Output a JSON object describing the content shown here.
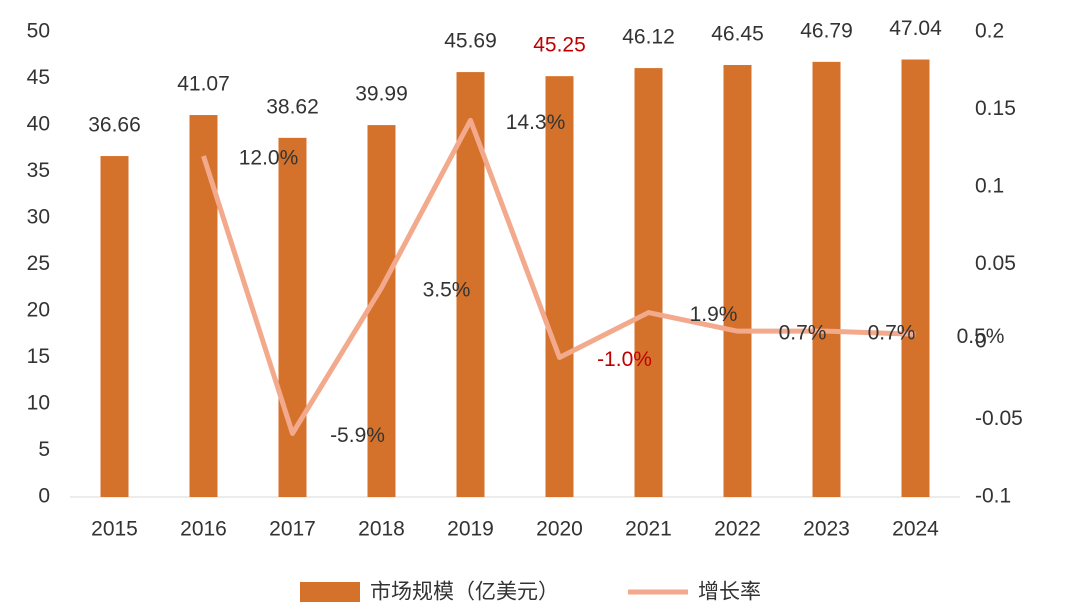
{
  "chart_data": {
    "type": "bar_line",
    "categories": [
      "2015",
      "2016",
      "2017",
      "2018",
      "2019",
      "2020",
      "2021",
      "2022",
      "2023",
      "2024"
    ],
    "series": [
      {
        "name": "市场规模（亿美元）",
        "type": "bar",
        "color": "#d4722b",
        "values": [
          36.66,
          41.07,
          38.62,
          39.99,
          45.69,
          45.25,
          46.12,
          46.45,
          46.79,
          47.04
        ],
        "value_label_colors": [
          "#333333",
          "#333333",
          "#333333",
          "#333333",
          "#333333",
          "#c00000",
          "#333333",
          "#333333",
          "#333333",
          "#333333"
        ]
      },
      {
        "name": "增长率",
        "type": "line",
        "axis": "y2",
        "color": "#f2a98c",
        "values": [
          null,
          0.12,
          -0.059,
          0.035,
          0.143,
          -0.01,
          0.019,
          0.007,
          0.007,
          0.005
        ],
        "value_labels": [
          null,
          "12.0%",
          "-5.9%",
          "3.5%",
          "14.3%",
          "-1.0%",
          "1.9%",
          "0.7%",
          "0.7%",
          "0.5%"
        ],
        "value_label_colors": [
          null,
          "#333333",
          "#333333",
          "#333333",
          "#333333",
          "#c00000",
          "#333333",
          "#333333",
          "#333333",
          "#333333"
        ]
      }
    ],
    "ylim": [
      0,
      50
    ],
    "yticks": [
      0,
      5,
      10,
      15,
      20,
      25,
      30,
      35,
      40,
      45,
      50
    ],
    "y2lim": [
      -0.1,
      0.2
    ],
    "y2ticks": [
      -0.1,
      -0.05,
      0,
      0.05,
      0.1,
      0.15,
      0.2
    ],
    "grid": false,
    "legend": "bottom"
  }
}
